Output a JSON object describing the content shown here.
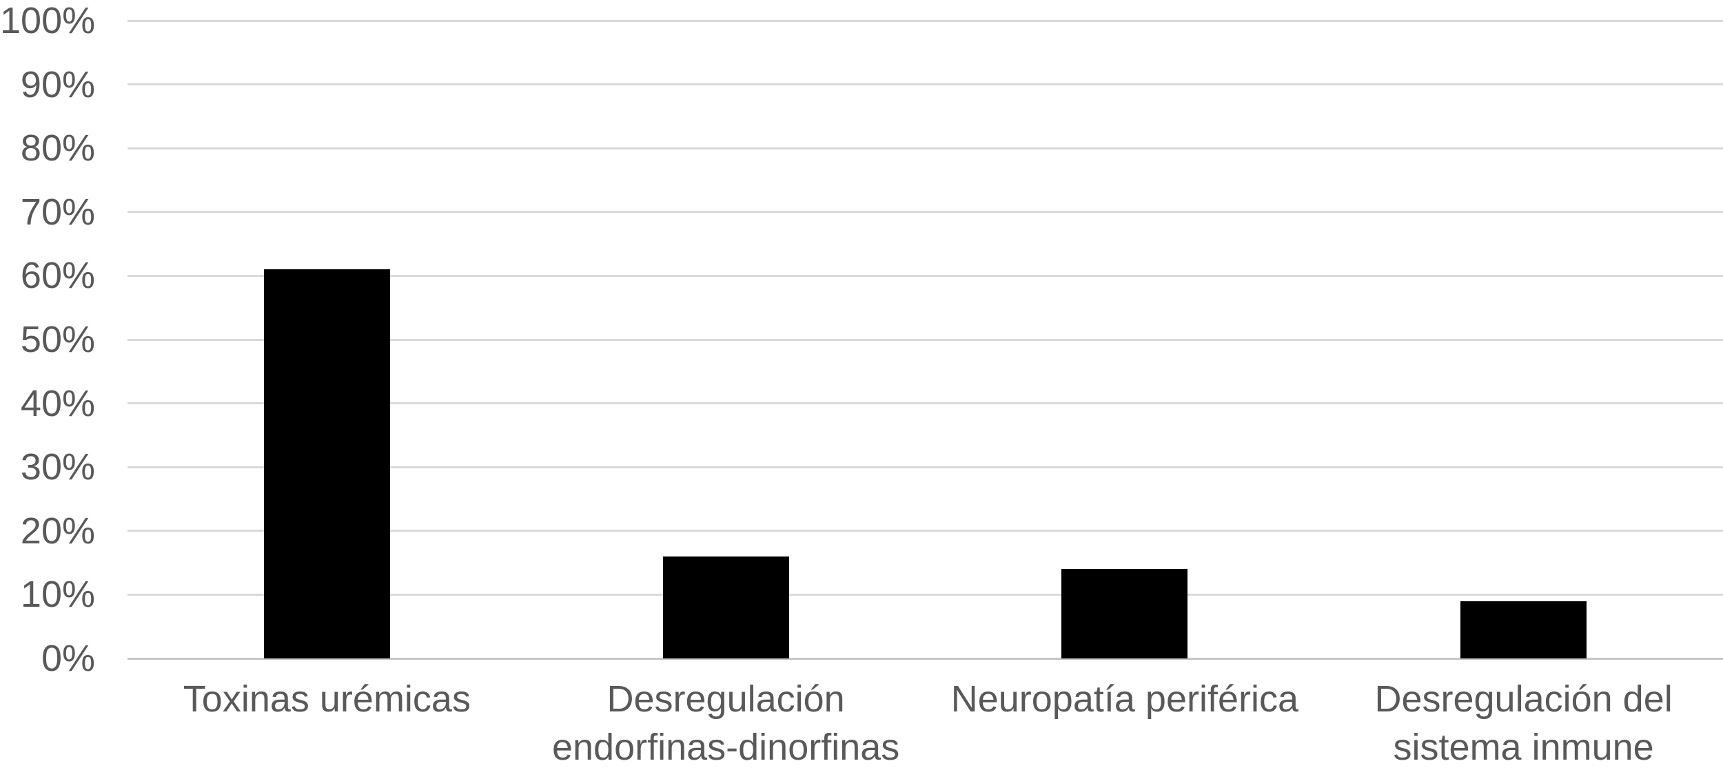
{
  "chart_data": {
    "type": "bar",
    "title": "",
    "xlabel": "",
    "ylabel": "",
    "categories": [
      "Toxinas urémicas",
      "Desregulación endorfinas-dinorfinas",
      "Neuropatía periférica",
      "Desregulación del sistema inmune"
    ],
    "category_label_lines": [
      [
        "Toxinas urémicas"
      ],
      [
        "Desregulación",
        "endorfinas-dinorfinas"
      ],
      [
        "Neuropatía periférica"
      ],
      [
        "Desregulación del",
        "sistema inmune"
      ]
    ],
    "values": [
      61,
      16,
      14,
      9
    ],
    "value_unit": "%",
    "ylim": [
      0,
      100
    ],
    "y_ticks": [
      0,
      10,
      20,
      30,
      40,
      50,
      60,
      70,
      80,
      90,
      100
    ],
    "y_tick_labels": [
      "0%",
      "10%",
      "20%",
      "30%",
      "40%",
      "50%",
      "60%",
      "70%",
      "80%",
      "90%",
      "100%"
    ],
    "grid": true,
    "legend_position": "none"
  },
  "colors": {
    "bar": "#000000",
    "axis_text": "#595959",
    "gridline": "#D9D9D9",
    "axis_line": "#C6C6C6",
    "background": "#FFFFFF"
  }
}
